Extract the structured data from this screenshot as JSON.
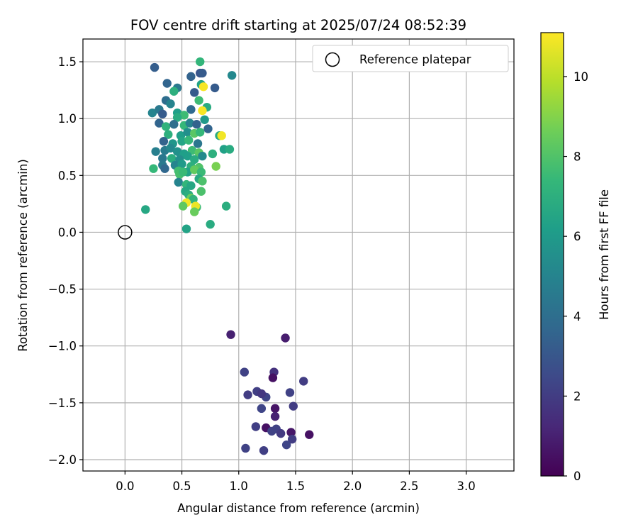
{
  "chart_data": {
    "type": "scatter",
    "title": "FOV centre drift starting at 2025/07/24 08:52:39",
    "xlabel": "Angular distance from reference (arcmin)",
    "ylabel": "Rotation from reference (arcmin)",
    "xlim": [
      -0.37,
      3.42
    ],
    "ylim": [
      -2.1,
      1.7
    ],
    "xticks": [
      "0.0",
      "0.5",
      "1.0",
      "1.5",
      "2.0",
      "2.5",
      "3.0"
    ],
    "xtick_values": [
      0,
      0.5,
      1.0,
      1.5,
      2.0,
      2.5,
      3.0
    ],
    "yticks": [
      "1.5",
      "1.0",
      "0.5",
      "0.0",
      "−0.5",
      "−1.0",
      "−1.5",
      "−2.0"
    ],
    "ytick_values": [
      1.5,
      1.0,
      0.5,
      0.0,
      -0.5,
      -1.0,
      -1.5,
      -2.0
    ],
    "grid": true,
    "legend": {
      "position": "top-right",
      "entries": [
        "Reference platepar"
      ]
    },
    "reference_point": {
      "x": 0.0,
      "y": 0.0
    },
    "colorbar": {
      "label": "Hours from first FF file",
      "range": [
        0,
        11.1
      ],
      "ticks": [
        "0",
        "2",
        "4",
        "6",
        "8",
        "10"
      ],
      "tick_values": [
        0,
        2,
        4,
        6,
        8,
        10
      ],
      "colormap": [
        "#440154",
        "#482878",
        "#3e4989",
        "#31688e",
        "#26828e",
        "#1f9e89",
        "#35b779",
        "#6ece58",
        "#b5de2b",
        "#fde725"
      ]
    },
    "points": [
      {
        "x": 0.93,
        "y": -0.9,
        "h": 1.0
      },
      {
        "x": 1.41,
        "y": -0.93,
        "h": 0.9
      },
      {
        "x": 1.05,
        "y": -1.23,
        "h": 2.2
      },
      {
        "x": 1.31,
        "y": -1.23,
        "h": 1.6
      },
      {
        "x": 1.3,
        "y": -1.28,
        "h": 0.5
      },
      {
        "x": 1.57,
        "y": -1.31,
        "h": 2.0
      },
      {
        "x": 1.08,
        "y": -1.43,
        "h": 2.0
      },
      {
        "x": 1.16,
        "y": -1.4,
        "h": 2.1
      },
      {
        "x": 1.24,
        "y": -1.45,
        "h": 2.3
      },
      {
        "x": 1.45,
        "y": -1.41,
        "h": 2.2
      },
      {
        "x": 1.2,
        "y": -1.42,
        "h": 1.8
      },
      {
        "x": 1.48,
        "y": -1.53,
        "h": 2.0
      },
      {
        "x": 1.32,
        "y": -1.55,
        "h": 0.6
      },
      {
        "x": 1.2,
        "y": -1.55,
        "h": 2.3
      },
      {
        "x": 1.32,
        "y": -1.62,
        "h": 1.0
      },
      {
        "x": 1.15,
        "y": -1.71,
        "h": 2.1
      },
      {
        "x": 1.24,
        "y": -1.72,
        "h": 0.5
      },
      {
        "x": 1.29,
        "y": -1.75,
        "h": 2.2
      },
      {
        "x": 1.33,
        "y": -1.73,
        "h": 2.2
      },
      {
        "x": 1.37,
        "y": -1.77,
        "h": 1.9
      },
      {
        "x": 1.46,
        "y": -1.76,
        "h": 0.7
      },
      {
        "x": 1.47,
        "y": -1.82,
        "h": 2.0
      },
      {
        "x": 1.62,
        "y": -1.78,
        "h": 0.5
      },
      {
        "x": 1.42,
        "y": -1.87,
        "h": 2.3
      },
      {
        "x": 1.06,
        "y": -1.9,
        "h": 2.2
      },
      {
        "x": 1.22,
        "y": -1.92,
        "h": 2.1
      },
      {
        "x": 0.26,
        "y": 1.45,
        "h": 3.3
      },
      {
        "x": 0.37,
        "y": 1.31,
        "h": 3.6
      },
      {
        "x": 0.46,
        "y": 1.27,
        "h": 4.5
      },
      {
        "x": 0.58,
        "y": 1.37,
        "h": 3.5
      },
      {
        "x": 0.66,
        "y": 1.4,
        "h": 2.9
      },
      {
        "x": 0.68,
        "y": 1.4,
        "h": 3.2
      },
      {
        "x": 0.66,
        "y": 1.5,
        "h": 7.3
      },
      {
        "x": 0.94,
        "y": 1.38,
        "h": 5.2
      },
      {
        "x": 0.67,
        "y": 1.3,
        "h": 6.4
      },
      {
        "x": 0.69,
        "y": 1.28,
        "h": 11.0
      },
      {
        "x": 0.61,
        "y": 1.23,
        "h": 3.2
      },
      {
        "x": 0.79,
        "y": 1.27,
        "h": 3.2
      },
      {
        "x": 0.43,
        "y": 1.24,
        "h": 7.0
      },
      {
        "x": 0.36,
        "y": 1.16,
        "h": 4.0
      },
      {
        "x": 0.4,
        "y": 1.13,
        "h": 5.0
      },
      {
        "x": 0.65,
        "y": 1.16,
        "h": 7.6
      },
      {
        "x": 0.72,
        "y": 1.1,
        "h": 6.8
      },
      {
        "x": 0.68,
        "y": 1.07,
        "h": 11.0
      },
      {
        "x": 0.24,
        "y": 1.05,
        "h": 5.0
      },
      {
        "x": 0.3,
        "y": 1.08,
        "h": 4.5
      },
      {
        "x": 0.33,
        "y": 1.04,
        "h": 3.2
      },
      {
        "x": 0.46,
        "y": 1.05,
        "h": 6.2
      },
      {
        "x": 0.52,
        "y": 1.03,
        "h": 7.6
      },
      {
        "x": 0.58,
        "y": 1.08,
        "h": 3.8
      },
      {
        "x": 0.46,
        "y": 1.01,
        "h": 6.8
      },
      {
        "x": 0.7,
        "y": 0.99,
        "h": 6.0
      },
      {
        "x": 0.3,
        "y": 0.96,
        "h": 3.6
      },
      {
        "x": 0.36,
        "y": 0.93,
        "h": 7.2
      },
      {
        "x": 0.43,
        "y": 0.95,
        "h": 4.0
      },
      {
        "x": 0.52,
        "y": 0.94,
        "h": 7.4
      },
      {
        "x": 0.57,
        "y": 0.96,
        "h": 5.0
      },
      {
        "x": 0.63,
        "y": 0.95,
        "h": 3.5
      },
      {
        "x": 0.73,
        "y": 0.91,
        "h": 3.6
      },
      {
        "x": 0.38,
        "y": 0.86,
        "h": 7.0
      },
      {
        "x": 0.49,
        "y": 0.85,
        "h": 6.2
      },
      {
        "x": 0.55,
        "y": 0.88,
        "h": 5.5
      },
      {
        "x": 0.61,
        "y": 0.87,
        "h": 8.2
      },
      {
        "x": 0.66,
        "y": 0.88,
        "h": 7.4
      },
      {
        "x": 0.83,
        "y": 0.85,
        "h": 6.8
      },
      {
        "x": 0.85,
        "y": 0.85,
        "h": 10.9
      },
      {
        "x": 0.34,
        "y": 0.8,
        "h": 3.5
      },
      {
        "x": 0.42,
        "y": 0.78,
        "h": 5.8
      },
      {
        "x": 0.5,
        "y": 0.8,
        "h": 6.5
      },
      {
        "x": 0.56,
        "y": 0.81,
        "h": 7.4
      },
      {
        "x": 0.64,
        "y": 0.78,
        "h": 4.4
      },
      {
        "x": 0.27,
        "y": 0.71,
        "h": 4.8
      },
      {
        "x": 0.35,
        "y": 0.72,
        "h": 4.6
      },
      {
        "x": 0.4,
        "y": 0.74,
        "h": 5.2
      },
      {
        "x": 0.46,
        "y": 0.71,
        "h": 5.6
      },
      {
        "x": 0.52,
        "y": 0.69,
        "h": 6.2
      },
      {
        "x": 0.59,
        "y": 0.72,
        "h": 7.6
      },
      {
        "x": 0.65,
        "y": 0.7,
        "h": 8.2
      },
      {
        "x": 0.87,
        "y": 0.73,
        "h": 6.3
      },
      {
        "x": 0.92,
        "y": 0.73,
        "h": 6.8
      },
      {
        "x": 0.77,
        "y": 0.69,
        "h": 7.0
      },
      {
        "x": 0.33,
        "y": 0.65,
        "h": 4.4
      },
      {
        "x": 0.41,
        "y": 0.65,
        "h": 6.9
      },
      {
        "x": 0.48,
        "y": 0.64,
        "h": 5.5
      },
      {
        "x": 0.55,
        "y": 0.67,
        "h": 6.2
      },
      {
        "x": 0.61,
        "y": 0.64,
        "h": 6.8
      },
      {
        "x": 0.68,
        "y": 0.67,
        "h": 5.3
      },
      {
        "x": 0.33,
        "y": 0.59,
        "h": 4.5
      },
      {
        "x": 0.44,
        "y": 0.59,
        "h": 5.0
      },
      {
        "x": 0.5,
        "y": 0.6,
        "h": 6.0
      },
      {
        "x": 0.58,
        "y": 0.58,
        "h": 7.0
      },
      {
        "x": 0.65,
        "y": 0.57,
        "h": 8.0
      },
      {
        "x": 0.25,
        "y": 0.56,
        "h": 7.4
      },
      {
        "x": 0.35,
        "y": 0.56,
        "h": 3.7
      },
      {
        "x": 0.47,
        "y": 0.54,
        "h": 7.7
      },
      {
        "x": 0.55,
        "y": 0.53,
        "h": 6.4
      },
      {
        "x": 0.61,
        "y": 0.55,
        "h": 8.4
      },
      {
        "x": 0.67,
        "y": 0.53,
        "h": 7.5
      },
      {
        "x": 0.8,
        "y": 0.58,
        "h": 8.8
      },
      {
        "x": 0.48,
        "y": 0.51,
        "h": 7.8
      },
      {
        "x": 0.51,
        "y": 0.53,
        "h": 7.5
      },
      {
        "x": 0.65,
        "y": 0.47,
        "h": 6.7
      },
      {
        "x": 0.68,
        "y": 0.45,
        "h": 7.9
      },
      {
        "x": 0.47,
        "y": 0.44,
        "h": 5.0
      },
      {
        "x": 0.54,
        "y": 0.42,
        "h": 7.3
      },
      {
        "x": 0.58,
        "y": 0.41,
        "h": 6.6
      },
      {
        "x": 0.53,
        "y": 0.36,
        "h": 6.6
      },
      {
        "x": 0.67,
        "y": 0.36,
        "h": 7.9
      },
      {
        "x": 0.56,
        "y": 0.33,
        "h": 6.9
      },
      {
        "x": 0.58,
        "y": 0.3,
        "h": 8.5
      },
      {
        "x": 0.6,
        "y": 0.29,
        "h": 7.2
      },
      {
        "x": 0.54,
        "y": 0.26,
        "h": 10.9
      },
      {
        "x": 0.51,
        "y": 0.23,
        "h": 8.3
      },
      {
        "x": 0.63,
        "y": 0.22,
        "h": 7.6
      },
      {
        "x": 0.62,
        "y": 0.23,
        "h": 10.8
      },
      {
        "x": 0.89,
        "y": 0.23,
        "h": 6.9
      },
      {
        "x": 0.61,
        "y": 0.18,
        "h": 8.5
      },
      {
        "x": 0.18,
        "y": 0.2,
        "h": 6.6
      },
      {
        "x": 0.75,
        "y": 0.07,
        "h": 6.8
      },
      {
        "x": 0.54,
        "y": 0.03,
        "h": 6.4
      }
    ]
  }
}
